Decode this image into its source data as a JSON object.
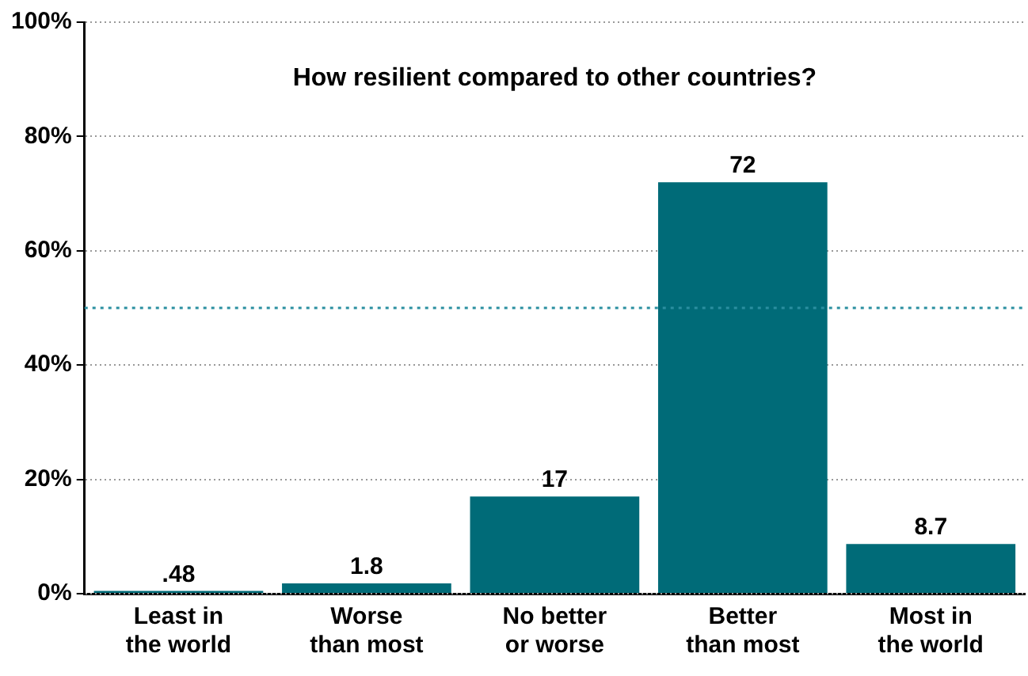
{
  "chart_data": {
    "type": "bar",
    "title": "How resilient compared to other countries?",
    "categories": [
      "Least in\nthe world",
      "Worse\nthan most",
      "No better\nor worse",
      "Better\nthan most",
      "Most in\nthe world"
    ],
    "values": [
      0.48,
      1.8,
      17,
      72,
      8.7
    ],
    "value_labels": [
      ".48",
      "1.8",
      "17",
      "72",
      "8.7"
    ],
    "color": "#006b78",
    "ylim": [
      0,
      100
    ],
    "yticks": [
      {
        "value": 0,
        "label": "0%"
      },
      {
        "value": 20,
        "label": "20%"
      },
      {
        "value": 40,
        "label": "40%"
      },
      {
        "value": 60,
        "label": "60%"
      },
      {
        "value": 80,
        "label": "80%"
      },
      {
        "value": 100,
        "label": "100%"
      }
    ],
    "grid": "y",
    "ref_lines": [
      {
        "axis": "y",
        "value": 50,
        "color": "#2a8fa0",
        "line_style": "dotted"
      }
    ]
  }
}
